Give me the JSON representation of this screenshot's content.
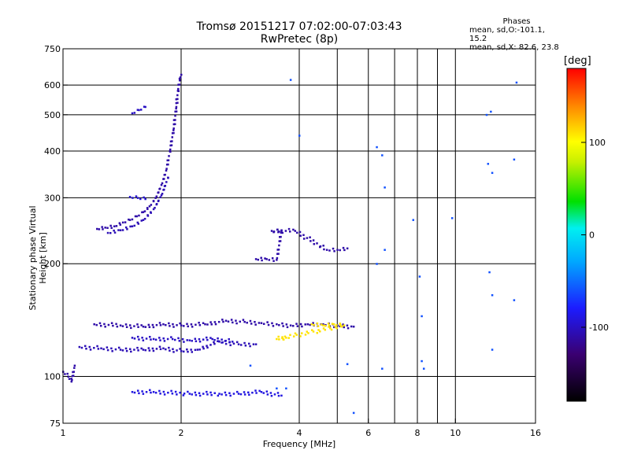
{
  "header": {
    "title_line1": "Tromsø 20151217 07:02:00-07:03:43",
    "title_line2": "RwPretec (8p)"
  },
  "phases_box": {
    "heading": "Phases",
    "line_o": "mean, sd,O:-101.1, 15.2",
    "line_x": "mean, sd,X:  82.6, 23.8"
  },
  "colors": {
    "grid": "#000000",
    "dominant_points": "#2b2be6"
  },
  "chart_data": {
    "type": "scatter",
    "title": "Tromsø 20151217 07:02:00-07:03:43",
    "subtitle": "RwPretec (8p)",
    "xlabel": "Frequency [MHz]",
    "ylabel": "Stationary phase Virtual Height [km]",
    "x_scale": "log",
    "y_scale": "log",
    "xlim": [
      1,
      16
    ],
    "ylim": [
      75,
      750
    ],
    "x_ticks": [
      1,
      2,
      4,
      6,
      8,
      10,
      16
    ],
    "x_tick_labels": [
      "1",
      "2",
      "4",
      "6",
      "8",
      "10",
      "16"
    ],
    "y_ticks": [
      75,
      100,
      200,
      300,
      400,
      500,
      600,
      750
    ],
    "y_tick_labels": [
      "75",
      "100",
      "200",
      "300",
      "400",
      "500",
      "600",
      "750"
    ],
    "grid": true,
    "colorbar": {
      "label": "[deg]",
      "range": [
        -180,
        180
      ],
      "ticks": [
        -100,
        0,
        100
      ],
      "tick_labels": [
        "-100",
        "0",
        "100"
      ]
    },
    "traces": [
      {
        "name_hint": "F-layer trace",
        "phase": -110,
        "points": [
          [
            1.22,
            248
          ],
          [
            1.28,
            250
          ],
          [
            1.35,
            252
          ],
          [
            1.42,
            258
          ],
          [
            1.48,
            262
          ],
          [
            1.54,
            268
          ],
          [
            1.6,
            275
          ],
          [
            1.66,
            285
          ],
          [
            1.72,
            300
          ],
          [
            1.78,
            325
          ],
          [
            1.83,
            355
          ],
          [
            1.87,
            400
          ],
          [
            1.91,
            455
          ],
          [
            1.94,
            520
          ],
          [
            1.96,
            580
          ],
          [
            1.98,
            625
          ],
          [
            2.0,
            640
          ]
        ]
      },
      {
        "name_hint": "F-layer lower branch",
        "phase": -105,
        "points": [
          [
            1.3,
            242
          ],
          [
            1.4,
            246
          ],
          [
            1.5,
            252
          ],
          [
            1.6,
            262
          ],
          [
            1.7,
            280
          ],
          [
            1.78,
            305
          ],
          [
            1.85,
            340
          ]
        ]
      },
      {
        "name_hint": "upper patch",
        "phase": -100,
        "points": [
          [
            1.5,
            505
          ],
          [
            1.56,
            515
          ],
          [
            1.62,
            525
          ]
        ]
      },
      {
        "name_hint": "patch 300km",
        "phase": -95,
        "points": [
          [
            1.48,
            302
          ],
          [
            1.55,
            300
          ],
          [
            1.62,
            298
          ]
        ]
      },
      {
        "name_hint": "E-layer upper",
        "phase": -110,
        "points": [
          [
            1.2,
            138
          ],
          [
            1.4,
            137
          ],
          [
            1.6,
            136
          ],
          [
            1.8,
            138
          ],
          [
            2.0,
            137
          ],
          [
            2.3,
            138
          ],
          [
            2.6,
            141
          ],
          [
            2.9,
            140
          ],
          [
            3.2,
            139
          ],
          [
            3.5,
            138
          ],
          [
            3.8,
            137
          ],
          [
            4.2,
            138
          ],
          [
            4.6,
            138
          ],
          [
            5.0,
            137
          ],
          [
            5.5,
            136
          ]
        ]
      },
      {
        "name_hint": "E-layer lower",
        "phase": -105,
        "points": [
          [
            1.1,
            120
          ],
          [
            1.25,
            119
          ],
          [
            1.4,
            118
          ],
          [
            1.6,
            118
          ],
          [
            1.8,
            119
          ],
          [
            2.0,
            117
          ],
          [
            2.2,
            118
          ],
          [
            2.5,
            124
          ],
          [
            2.8,
            122
          ],
          [
            3.1,
            122
          ]
        ]
      },
      {
        "name_hint": "E-layer mid",
        "phase": -100,
        "points": [
          [
            1.5,
            127
          ],
          [
            1.7,
            126
          ],
          [
            1.9,
            126
          ],
          [
            2.1,
            125
          ],
          [
            2.4,
            126
          ],
          [
            2.7,
            124
          ]
        ]
      },
      {
        "name_hint": "yellow cluster",
        "phase": 110,
        "points": [
          [
            4.3,
            138
          ],
          [
            4.6,
            137
          ],
          [
            4.9,
            138
          ],
          [
            5.2,
            137
          ],
          [
            3.5,
            126
          ],
          [
            3.7,
            127
          ]
        ]
      },
      {
        "name_hint": "middle patch",
        "phase": -110,
        "points": [
          [
            3.1,
            206
          ],
          [
            3.3,
            206
          ],
          [
            3.5,
            205
          ],
          [
            3.6,
            245
          ],
          [
            3.4,
            245
          ],
          [
            3.9,
            245
          ],
          [
            4.7,
            218
          ],
          [
            5.0,
            218
          ],
          [
            5.3,
            220
          ]
        ]
      },
      {
        "name_hint": "low patch",
        "phase": -90,
        "points": [
          [
            1.5,
            91
          ],
          [
            1.7,
            91
          ],
          [
            2.1,
            90
          ],
          [
            2.5,
            90
          ],
          [
            2.8,
            90
          ],
          [
            3.2,
            91
          ],
          [
            3.6,
            89
          ]
        ]
      },
      {
        "name_hint": "near 1 MHz",
        "phase": -110,
        "points": [
          [
            1.0,
            103
          ],
          [
            1.03,
            100
          ],
          [
            1.05,
            97
          ],
          [
            1.07,
            107
          ]
        ]
      },
      {
        "name_hint": "scattered",
        "phase": -60,
        "points": [
          [
            6.3,
            410
          ],
          [
            6.5,
            390
          ],
          [
            6.6,
            320
          ],
          [
            4.0,
            440
          ],
          [
            3.8,
            620
          ],
          [
            12.0,
            500
          ],
          [
            12.1,
            370
          ],
          [
            12.3,
            510
          ],
          [
            12.4,
            350
          ],
          [
            14.3,
            610
          ],
          [
            14.1,
            380
          ],
          [
            9.8,
            265
          ],
          [
            7.8,
            262
          ],
          [
            6.6,
            218
          ],
          [
            6.3,
            200
          ],
          [
            8.1,
            185
          ],
          [
            8.2,
            145
          ],
          [
            12.2,
            190
          ],
          [
            12.4,
            165
          ],
          [
            14.1,
            160
          ],
          [
            12.4,
            118
          ],
          [
            8.2,
            110
          ],
          [
            8.3,
            105
          ],
          [
            6.5,
            105
          ],
          [
            5.3,
            108
          ],
          [
            5.5,
            80
          ],
          [
            3.7,
            93
          ],
          [
            3.5,
            93
          ],
          [
            3.0,
            107
          ]
        ]
      }
    ]
  }
}
